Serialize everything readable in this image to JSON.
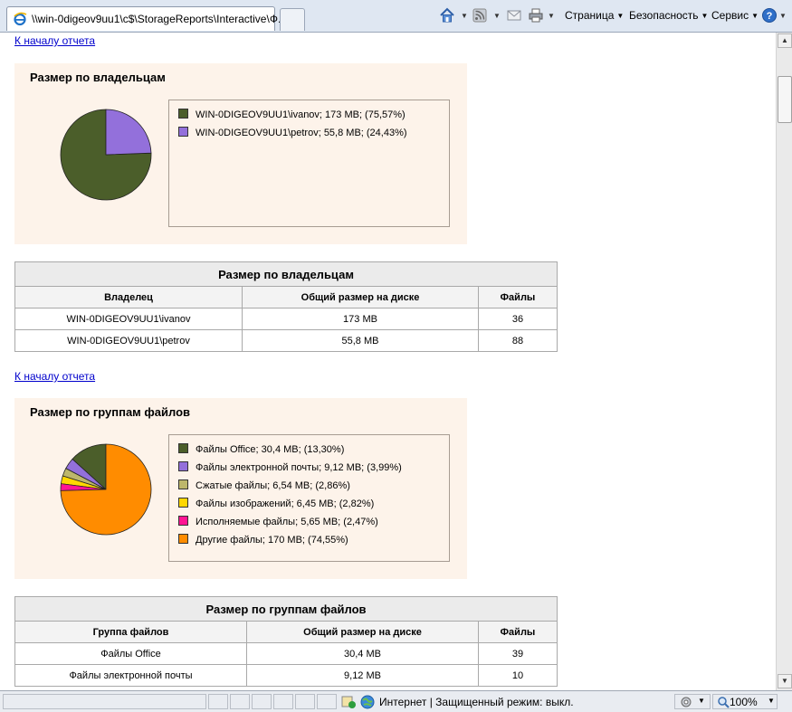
{
  "browser": {
    "tab_title": "\\\\win-0digeov9uu1\\c$\\StorageReports\\Interactive\\Ф...",
    "menu": {
      "page": "Страница",
      "safety": "Безопасность",
      "tools": "Сервис"
    }
  },
  "report": {
    "back_link": "К началу отчета",
    "owners": {
      "panel_title": "Размер по владельцам",
      "legend": [
        {
          "label": "WIN-0DIGEOV9UU1\\ivanov; 173 MB; (75,57%)",
          "color": "#4b5e2a"
        },
        {
          "label": "WIN-0DIGEOV9UU1\\petrov; 55,8 MB; (24,43%)",
          "color": "#9370db"
        }
      ],
      "table": {
        "caption": "Размер по владельцам",
        "headers": [
          "Владелец",
          "Общий размер на диске",
          "Файлы"
        ],
        "rows": [
          [
            "WIN-0DIGEOV9UU1\\ivanov",
            "173 MB",
            "36"
          ],
          [
            "WIN-0DIGEOV9UU1\\petrov",
            "55,8 MB",
            "88"
          ]
        ]
      }
    },
    "groups": {
      "panel_title": "Размер по группам файлов",
      "legend": [
        {
          "label": "Файлы Office; 30,4 MB; (13,30%)",
          "color": "#4b5e2a"
        },
        {
          "label": "Файлы электронной почты; 9,12 MB; (3,99%)",
          "color": "#9370db"
        },
        {
          "label": "Сжатые файлы; 6,54 MB; (2,86%)",
          "color": "#bdb76b"
        },
        {
          "label": "Файлы изображений; 6,45 MB; (2,82%)",
          "color": "#ffd700"
        },
        {
          "label": "Исполняемые файлы; 5,65 MB; (2,47%)",
          "color": "#ff1493"
        },
        {
          "label": "Другие файлы; 170 MB; (74,55%)",
          "color": "#ff8c00"
        }
      ],
      "table": {
        "caption": "Размер по группам файлов",
        "headers": [
          "Группа файлов",
          "Общий размер на диске",
          "Файлы"
        ],
        "rows": [
          [
            "Файлы Office",
            "30,4 MB",
            "39"
          ],
          [
            "Файлы электронной почты",
            "9,12 MB",
            "10"
          ]
        ]
      }
    }
  },
  "chart_data": [
    {
      "type": "pie",
      "title": "Размер по владельцам",
      "categories": [
        "WIN-0DIGEOV9UU1\\ivanov",
        "WIN-0DIGEOV9UU1\\petrov"
      ],
      "values": [
        75.57,
        24.43
      ],
      "colors": [
        "#4b5e2a",
        "#9370db"
      ]
    },
    {
      "type": "pie",
      "title": "Размер по группам файлов",
      "categories": [
        "Файлы Office",
        "Файлы электронной почты",
        "Сжатые файлы",
        "Файлы изображений",
        "Исполняемые файлы",
        "Другие файлы"
      ],
      "values": [
        13.3,
        3.99,
        2.86,
        2.82,
        2.47,
        74.55
      ],
      "colors": [
        "#4b5e2a",
        "#9370db",
        "#bdb76b",
        "#ffd700",
        "#ff1493",
        "#ff8c00"
      ]
    }
  ],
  "status": {
    "zone": "Интернет | Защищенный режим: выкл.",
    "zoom": "100%"
  }
}
